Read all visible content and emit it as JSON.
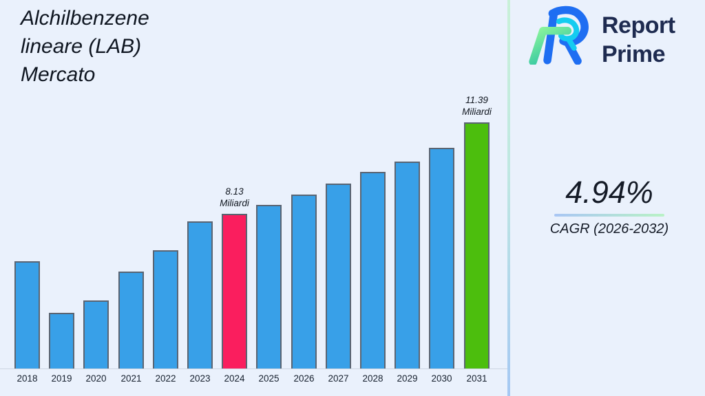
{
  "page": {
    "background": "#eaf1fc"
  },
  "title": {
    "text": "Alchilbenzene\nlineare (LAB)\nMercato"
  },
  "divider": {
    "gradient_top": "#c9f1d8",
    "gradient_bottom": "#a5c8f3"
  },
  "logo": {
    "line1": "Report",
    "line2": "Prime",
    "text_color": "#1e2b50",
    "mark_colors": {
      "blue": "#1e6ef2",
      "cyan": "#14ccf0",
      "green_light": "#8df59b",
      "green_teal": "#2cc3a4"
    }
  },
  "cagr": {
    "value": "4.94%",
    "caption": "CAGR (2026-2032)",
    "underline_left": "#a9c6f4",
    "underline_right": "#b9f2c6"
  },
  "chart_data": {
    "type": "bar",
    "title": "Alchilbenzene lineare (LAB) Mercato",
    "unit": "Miliardi",
    "categories": [
      "2018",
      "2019",
      "2020",
      "2021",
      "2022",
      "2023",
      "2024",
      "2025",
      "2026",
      "2027",
      "2028",
      "2029",
      "2030",
      "2031"
    ],
    "values": [
      6.43,
      4.6,
      5.04,
      6.07,
      6.83,
      7.86,
      8.13,
      8.44,
      8.81,
      9.2,
      9.62,
      9.99,
      10.48,
      11.39
    ],
    "values_note": "Only 2024 (8.13 Miliardi) and 2031 (11.39 Miliardi) are labeled in the image; other values estimated from bar heights",
    "annotations": [
      {
        "category": "2024",
        "line1": "8.13",
        "line2": "Miliardi"
      },
      {
        "category": "2031",
        "line1": "11.39",
        "line2": "Miliardi"
      }
    ],
    "bar_color_default": "#38a0e8",
    "bar_highlights": {
      "2024": "#fa1e5e",
      "2031": "#4cbe0d"
    },
    "bar_border": "#5a6472",
    "axis": {
      "y_min": 2.6,
      "y_max": 11.39,
      "zero_based": false,
      "grid": false,
      "legend": "none",
      "baseline_color": "#ccd5e2"
    }
  }
}
